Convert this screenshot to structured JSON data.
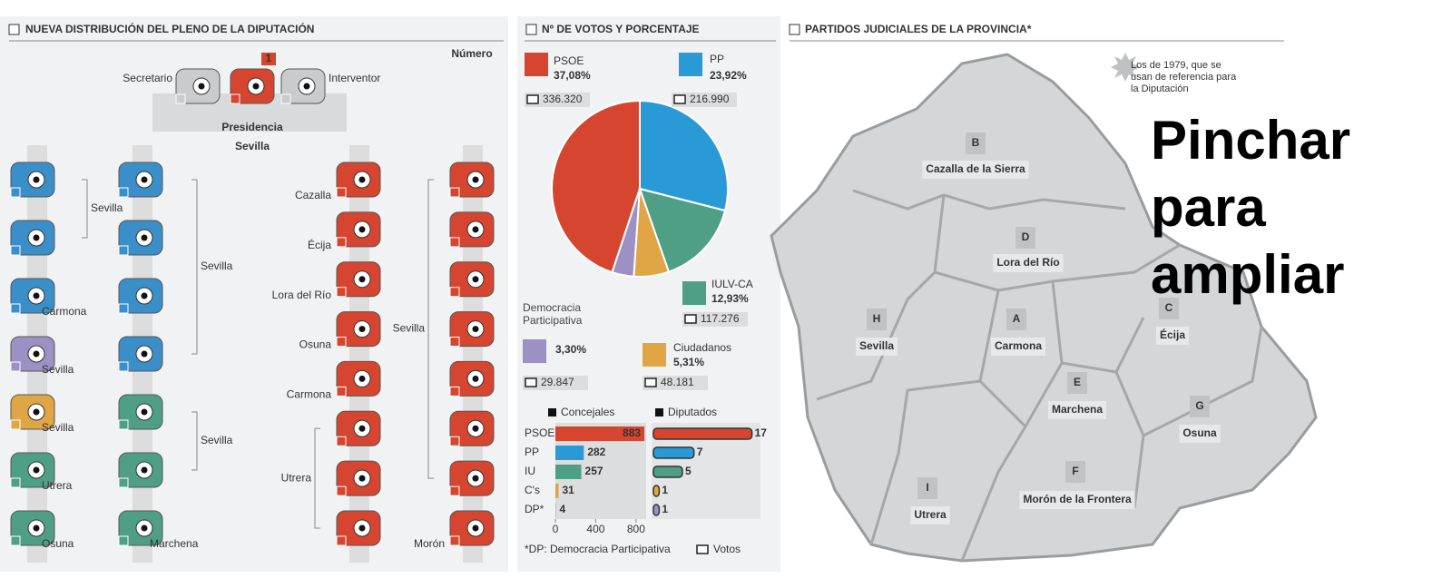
{
  "seats": {
    "title": "NUEVA DISTRIBUCIÓN DEL PLENO DE LA DIPUTACIÓN",
    "number_label": "Número",
    "secretary": "Secretario",
    "interventor": "Interventor",
    "president_badge": "1",
    "presidency": "Presidencia",
    "presidency_place": "Sevilla",
    "columns": [
      {
        "groups": [
          {
            "color": "#3b8fc9",
            "count": 2,
            "label": "Sevilla"
          },
          {
            "color": "#3b8fc9",
            "count": 1,
            "label": "Carmona"
          },
          {
            "color": "#9d90c4",
            "count": 1,
            "label": "Sevilla"
          },
          {
            "color": "#e0a545",
            "count": 1,
            "label": "Sevilla"
          },
          {
            "color": "#4f9e86",
            "count": 1,
            "label": "Utrera"
          },
          {
            "color": "#4f9e86",
            "count": 1,
            "label": "Osuna"
          }
        ]
      },
      {
        "groups": [
          {
            "color": "#3b8fc9",
            "count": 4,
            "label": "Sevilla"
          },
          {
            "color": "#4f9e86",
            "count": 2,
            "label": "Sevilla"
          },
          {
            "color": "#4f9e86",
            "count": 1,
            "label": "Marchena"
          }
        ]
      },
      {
        "groups": [
          {
            "color": "#d6452f",
            "count": 1,
            "label": "Cazalla"
          },
          {
            "color": "#d6452f",
            "count": 1,
            "label": "Écija"
          },
          {
            "color": "#d6452f",
            "count": 1,
            "label": "Lora del Río"
          },
          {
            "color": "#d6452f",
            "count": 1,
            "label": "Osuna"
          },
          {
            "color": "#d6452f",
            "count": 1,
            "label": "Carmona"
          },
          {
            "color": "#d6452f",
            "count": 3,
            "label": "Utrera"
          }
        ]
      },
      {
        "groups": [
          {
            "color": "#d6452f",
            "count": 7,
            "label": "Sevilla"
          },
          {
            "color": "#d6452f",
            "count": 1,
            "label": "Morón"
          }
        ]
      }
    ]
  },
  "votes": {
    "title": "Nº DE VOTOS Y PORCENTAJE",
    "parties": [
      {
        "name": "PSOE",
        "color": "#d6452f",
        "value": 37.08,
        "label": "37,08%",
        "votes": "336.320"
      },
      {
        "name": "Democracia Participativa",
        "color": "#9d90c4",
        "value": 3.3,
        "label": "3,30%",
        "votes": "29.847"
      },
      {
        "name": "Ciudadanos",
        "color": "#e0a545",
        "value": 5.31,
        "label": "5,31%",
        "votes": "48.181"
      },
      {
        "name": "IULV-CA",
        "color": "#4f9e86",
        "value": 12.93,
        "label": "12,93%",
        "votes": "117.276"
      },
      {
        "name": "PP",
        "color": "#2a9ad6",
        "value": 23.92,
        "label": "23,92%",
        "votes": "216.990"
      }
    ],
    "categories": [
      "PSOE",
      "PP",
      "IU",
      "C's",
      "DP*"
    ],
    "colors": [
      "#d6452f",
      "#2a9ad6",
      "#4f9e86",
      "#e0a545",
      "#9d90c4"
    ],
    "councillors": {
      "title": "Concejales",
      "values": [
        883,
        282,
        257,
        31,
        4
      ],
      "xlim": [
        0,
        900
      ],
      "xticks": [
        0,
        400,
        800
      ]
    },
    "deputies": {
      "title": "Diputados",
      "values": [
        17,
        7,
        5,
        1,
        1
      ],
      "xlim": [
        0,
        18
      ]
    },
    "footnote": "*DP: Democracia Participativa",
    "votes_legend": "Votos"
  },
  "map": {
    "title": "PARTIDOS JUDICIALES DE LA PROVINCIA*",
    "note": "Los de 1979, que se usan de referencia para la Diputación",
    "regions": [
      {
        "letter": "A",
        "name": "Carmona"
      },
      {
        "letter": "B",
        "name": "Cazalla de la Sierra"
      },
      {
        "letter": "C",
        "name": "Écija"
      },
      {
        "letter": "D",
        "name": "Lora del Río"
      },
      {
        "letter": "E",
        "name": "Marchena"
      },
      {
        "letter": "F",
        "name": "Morón de la Frontera"
      },
      {
        "letter": "G",
        "name": "Osuna"
      },
      {
        "letter": "H",
        "name": "Sevilla"
      },
      {
        "letter": "I",
        "name": "Utrera"
      }
    ],
    "zoom_hint": "Pinchar para ampliar"
  }
}
